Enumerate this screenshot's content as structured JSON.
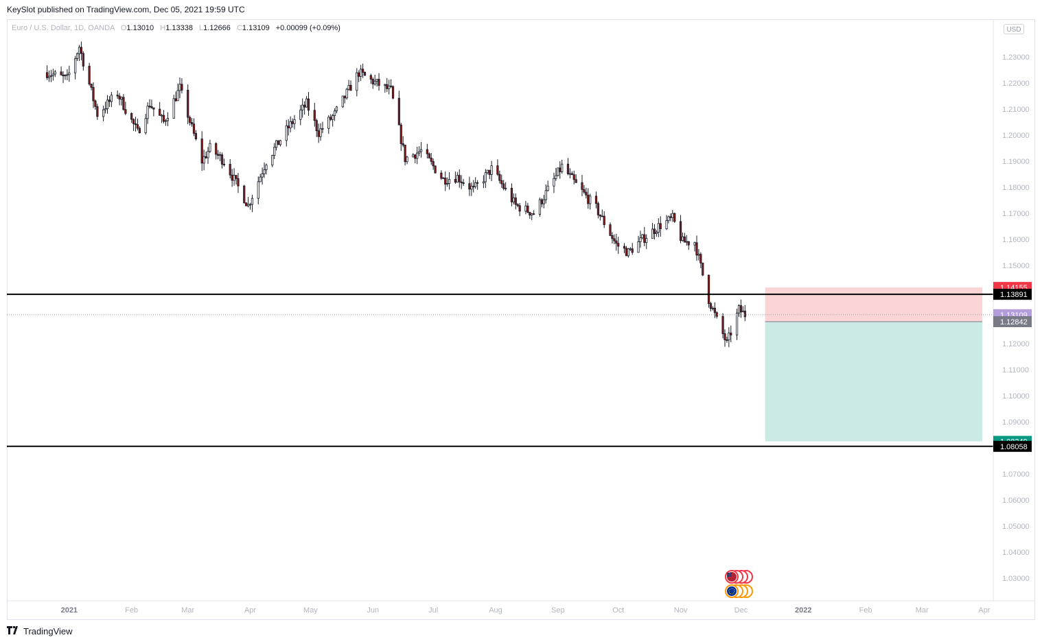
{
  "header": {
    "published_text": "KeySlot published on TradingView.com, Dec 05, 2021 19:59 UTC"
  },
  "legend": {
    "symbol": "Euro / U.S. Dollar, 1D, OANDA",
    "open_label": "O",
    "open": "1.13010",
    "high_label": "H",
    "high": "1.13338",
    "low_label": "L",
    "low": "1.12666",
    "close_label": "C",
    "close": "1.13109",
    "change": "+0.00099 (+0.09%)"
  },
  "currency": "USD",
  "footer": {
    "brand": "TradingView",
    "logo_icon": "tradingview-logo-icon"
  },
  "colors": {
    "up": "#ffffff",
    "down": "#8b1a1a",
    "wick": "#131722",
    "stop_zone": "#fbd5d5",
    "target_zone": "#cbe9e5",
    "hline": "#000000"
  },
  "chart_data": {
    "type": "candlestick",
    "y_axis": {
      "range": [
        1.0225,
        1.2445
      ],
      "ticks": [
        "1.23000",
        "1.22000",
        "1.21000",
        "1.20000",
        "1.19000",
        "1.18000",
        "1.17000",
        "1.16000",
        "1.15000",
        "1.12000",
        "1.11000",
        "1.10000",
        "1.09000",
        "1.07000",
        "1.06000",
        "1.05000",
        "1.04000",
        "1.03000"
      ],
      "tick_values": [
        1.23,
        1.22,
        1.21,
        1.2,
        1.19,
        1.18,
        1.17,
        1.16,
        1.15,
        1.12,
        1.11,
        1.1,
        1.09,
        1.07,
        1.06,
        1.05,
        1.04,
        1.03
      ]
    },
    "x_axis": {
      "labels": [
        "2021",
        "Feb",
        "Mar",
        "Apr",
        "May",
        "Jun",
        "Jul",
        "Aug",
        "Sep",
        "Oct",
        "Nov",
        "Dec",
        "2022",
        "Feb",
        "Mar",
        "Apr"
      ],
      "bold": [
        true,
        false,
        false,
        false,
        false,
        false,
        false,
        false,
        false,
        false,
        false,
        false,
        true,
        false,
        false,
        false
      ]
    },
    "horizontal_lines": [
      {
        "price": 1.13891,
        "label": "1.13891"
      },
      {
        "price": 1.08058,
        "label": "1.08058"
      }
    ],
    "position": {
      "side": "short",
      "entry": 1.12842,
      "entry_label": "1.12842",
      "stop": 1.14155,
      "stop_label": "1.14155",
      "target": 1.08249,
      "target_label": "1.08249",
      "start": "2021-12-13",
      "end": "2022-03-31"
    },
    "last_price": {
      "price": 1.13109,
      "label": "1.13109"
    },
    "candles_close_path": [
      [
        "2020-12-21",
        1.224
      ],
      [
        "2020-12-31",
        1.2215
      ],
      [
        "2021-01-06",
        1.234
      ],
      [
        "2021-01-15",
        1.208
      ],
      [
        "2021-01-25",
        1.216
      ],
      [
        "2021-02-04",
        1.201
      ],
      [
        "2021-02-10",
        1.212
      ],
      [
        "2021-02-17",
        1.205
      ],
      [
        "2021-02-25",
        1.218
      ],
      [
        "2021-03-08",
        1.19
      ],
      [
        "2021-03-12",
        1.195
      ],
      [
        "2021-03-19",
        1.19
      ],
      [
        "2021-03-31",
        1.173
      ],
      [
        "2021-04-09",
        1.19
      ],
      [
        "2021-04-20",
        1.203
      ],
      [
        "2021-04-29",
        1.212
      ],
      [
        "2021-05-05",
        1.201
      ],
      [
        "2021-05-13",
        1.208
      ],
      [
        "2021-05-25",
        1.224
      ],
      [
        "2021-05-31",
        1.221
      ],
      [
        "2021-06-10",
        1.217
      ],
      [
        "2021-06-17",
        1.191
      ],
      [
        "2021-06-25",
        1.194
      ],
      [
        "2021-07-06",
        1.183
      ],
      [
        "2021-07-13",
        1.184
      ],
      [
        "2021-07-21",
        1.179
      ],
      [
        "2021-07-30",
        1.187
      ],
      [
        "2021-08-11",
        1.173
      ],
      [
        "2021-08-20",
        1.17
      ],
      [
        "2021-09-03",
        1.188
      ],
      [
        "2021-09-10",
        1.181
      ],
      [
        "2021-09-20",
        1.172
      ],
      [
        "2021-09-30",
        1.158
      ],
      [
        "2021-10-06",
        1.155
      ],
      [
        "2021-10-13",
        1.16
      ],
      [
        "2021-10-21",
        1.165
      ],
      [
        "2021-10-28",
        1.168
      ],
      [
        "2021-11-02",
        1.159
      ],
      [
        "2021-11-08",
        1.159
      ],
      [
        "2021-11-15",
        1.137
      ],
      [
        "2021-11-19",
        1.129
      ],
      [
        "2021-11-24",
        1.12
      ],
      [
        "2021-11-30",
        1.133
      ],
      [
        "2021-12-03",
        1.1311
      ]
    ]
  }
}
